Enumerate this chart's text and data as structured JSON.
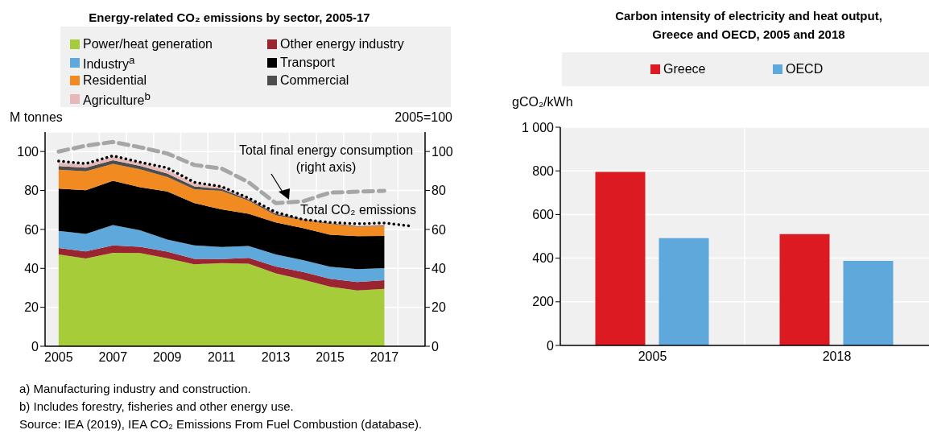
{
  "chart_data": [
    {
      "type": "area",
      "title": "Energy-related CO₂ emissions by sector, 2005-17",
      "ylabel": "M tonnes",
      "y2label": "2005=100",
      "stacked": true,
      "legend": "top",
      "grid": true,
      "x": [
        2005,
        2006,
        2007,
        2008,
        2009,
        2010,
        2011,
        2012,
        2013,
        2014,
        2015,
        2016,
        2017
      ],
      "series": [
        {
          "name": "Power/heat generation",
          "color": "#a6cc3a",
          "values": [
            47.1,
            45.1,
            48.0,
            47.9,
            45.2,
            42.1,
            42.7,
            42.4,
            37.4,
            34.2,
            30.6,
            28.6,
            29.5
          ]
        },
        {
          "name": "Other energy industry",
          "color": "#9a2530",
          "values": [
            3.3,
            3.6,
            3.8,
            3.2,
            3.4,
            2.8,
            2.1,
            3.0,
            3.5,
            3.9,
            4.0,
            4.4,
            4.4
          ]
        },
        {
          "name": "Industry$^{a}$",
          "color": "#5fa8dc",
          "values": [
            8.8,
            9.0,
            10.4,
            8.5,
            6.2,
            6.9,
            6.2,
            6.1,
            6.2,
            6.1,
            6.2,
            6.6,
            6.2
          ]
        },
        {
          "name": "Transport",
          "color": "#000000",
          "values": [
            21.7,
            22.4,
            22.8,
            22.1,
            24.7,
            21.7,
            19.3,
            16.5,
            16.5,
            16.5,
            16.5,
            17.0,
            16.6
          ]
        },
        {
          "name": "Residential",
          "color": "#f28a22",
          "values": [
            9.8,
            9.7,
            8.7,
            9.2,
            7.4,
            7.1,
            9.5,
            6.7,
            3.7,
            4.1,
            5.6,
            4.8,
            5.0
          ]
        },
        {
          "name": "Commercial",
          "color": "#4d4d4d",
          "values": [
            1.8,
            1.9,
            1.8,
            1.7,
            1.8,
            1.5,
            1.0,
            0.7,
            0.7,
            0.3,
            0.3,
            0.3,
            0.3
          ]
        },
        {
          "name": "Agriculture$^{b}$",
          "color": "#e6b8b8",
          "values": [
            1.8,
            1.6,
            1.8,
            1.7,
            1.8,
            1.6,
            1.1,
            0.6,
            0.6,
            0.3,
            0.3,
            0.3,
            0.3
          ]
        },
        {
          "name": "Total CO₂ emissions",
          "type": "line",
          "color": "#000000",
          "line_style": "dotted",
          "x": [
            2005,
            2006,
            2007,
            2008,
            2009,
            2010,
            2011,
            2012,
            2013,
            2014,
            2015,
            2016,
            2017,
            2018
          ],
          "values": [
            95.1,
            93.8,
            97.8,
            94.5,
            91.6,
            84.2,
            82.0,
            76.1,
            68.8,
            65.1,
            63.6,
            62.9,
            63.3,
            61.7
          ]
        },
        {
          "name": "Total final energy consumption (right axis)",
          "type": "line",
          "axis": "y2",
          "color": "#a6a6a6",
          "line_style": "dashed",
          "values": [
            100,
            103,
            104.9,
            102.2,
            99,
            93.1,
            91.3,
            84.2,
            73.5,
            74.4,
            78.9,
            79.4,
            79.8
          ]
        }
      ],
      "xlim": [
        2004.5,
        2018.5
      ],
      "xticks": [
        2005,
        2007,
        2009,
        2011,
        2013,
        2015,
        2017
      ],
      "ylim": [
        0,
        110
      ],
      "yticks": [
        0,
        20,
        40,
        60,
        80,
        100
      ],
      "y2lim": [
        0,
        110
      ],
      "y2ticks": [
        0,
        20,
        40,
        60,
        80,
        100
      ],
      "annotations": [
        "a) Manufacturing industry and construction.",
        "b) Includes forestry, fisheries and other energy use.",
        "Source: IEA (2019), IEA CO₂ Emissions From Fuel Combustion (database)."
      ]
    },
    {
      "type": "bar",
      "title": "Carbon intensity of electricity and heat output, Greece and OECD, 2005 and 2018",
      "ylabel": "gCO₂/kWh",
      "legend": "top",
      "grid": true,
      "categories": [
        "2005",
        "2018"
      ],
      "series": [
        {
          "name": "Greece",
          "color": "#dc1a21",
          "values": [
            795,
            510
          ]
        },
        {
          "name": "OECD",
          "color": "#5fa8dc",
          "values": [
            492,
            387
          ]
        }
      ],
      "ylim": [
        0,
        1000
      ],
      "yticks": [
        0,
        200,
        400,
        600,
        800,
        {
          "value": 1000,
          "label": "1 000"
        }
      ]
    }
  ]
}
